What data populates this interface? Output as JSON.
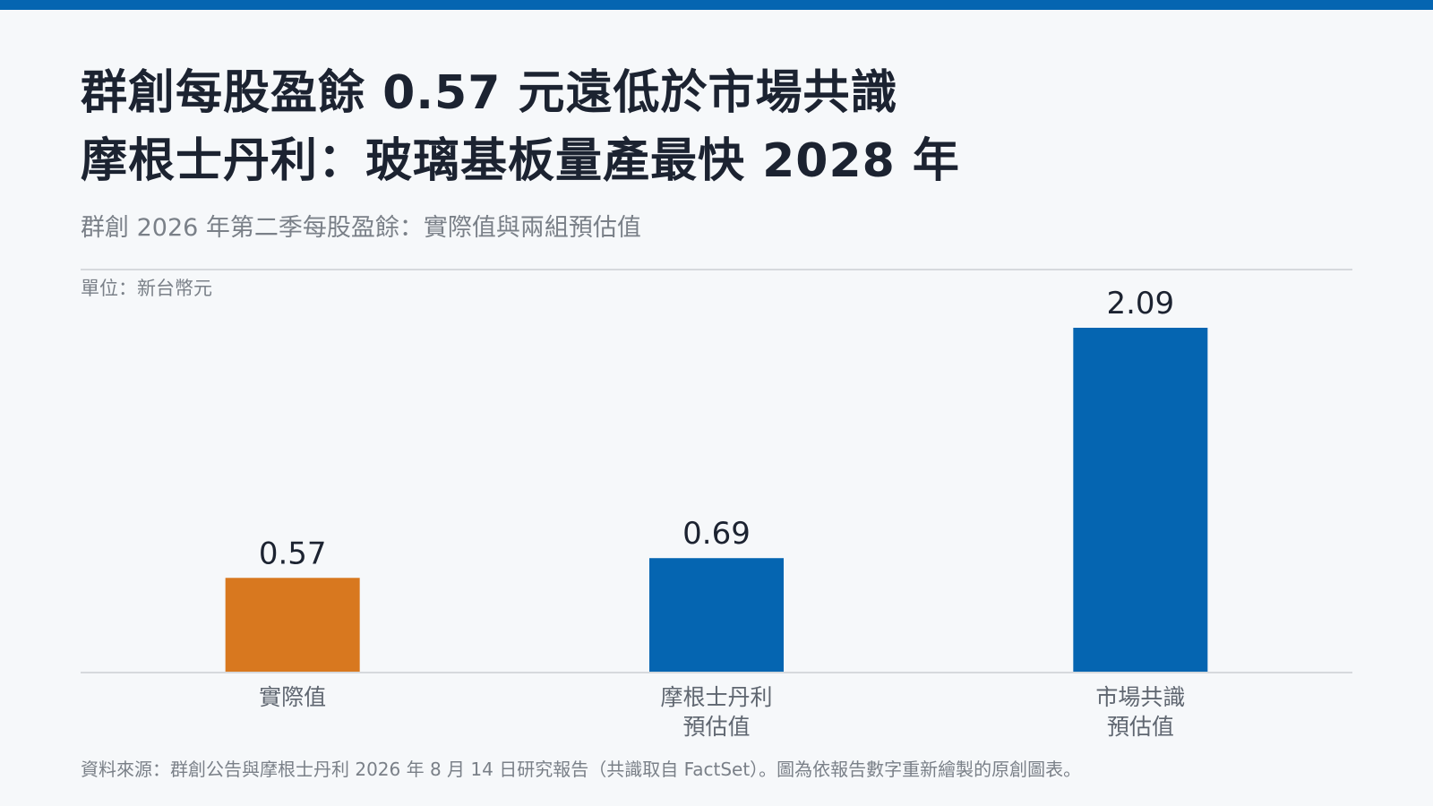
{
  "header": {
    "title_line1": "群創每股盈餘 0.57 元遠低於市場共識",
    "title_line2": "摩根士丹利：玻璃基板量產最快 2028 年",
    "subtitle": "群創 2026 年第二季每股盈餘：實際值與兩組預估值"
  },
  "unit_label": "單位：新台幣元",
  "source": "資料來源：群創公告與摩根士丹利 2026 年 8 月 14 日研究報告（共識取自 FactSet）。圖為依報告數字重新繪製的原創圖表。",
  "colors": {
    "accent": "#0565b1",
    "actual": "#d8781f",
    "estimate": "#0565b1",
    "rule": "#d6d9dd",
    "muted_text": "#7a8088"
  },
  "chart_data": {
    "type": "bar",
    "title": "群創 2026 年第二季每股盈餘：實際值與兩組預估值",
    "ylabel": "單位：新台幣元",
    "categories": [
      [
        "實際值"
      ],
      [
        "摩根士丹利",
        "預估值"
      ],
      [
        "市場共識",
        "預估值"
      ]
    ],
    "values": [
      0.57,
      0.69,
      2.09
    ],
    "value_labels": [
      "0.57",
      "0.69",
      "2.09"
    ],
    "bar_colors": [
      "#d8781f",
      "#0565b1",
      "#0565b1"
    ],
    "ylim": [
      0,
      2.09
    ],
    "grid": false,
    "legend": "none"
  }
}
